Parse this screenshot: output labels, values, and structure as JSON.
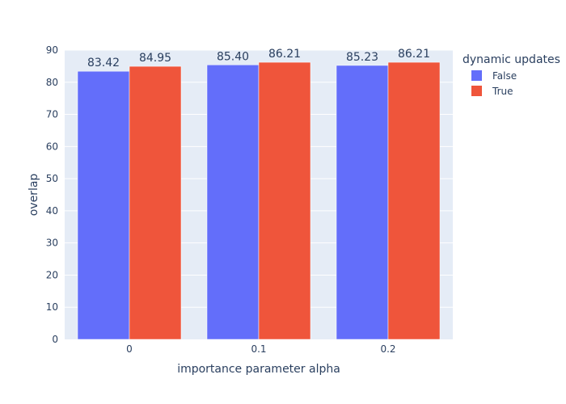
{
  "chart_data": {
    "type": "bar",
    "categories": [
      "0",
      "0.1",
      "0.2"
    ],
    "series": [
      {
        "name": "False",
        "values": [
          83.42,
          85.4,
          85.23
        ],
        "labels": [
          "83.42",
          "85.40",
          "85.23"
        ],
        "color": "#636efa"
      },
      {
        "name": "True",
        "values": [
          84.95,
          86.21,
          86.21
        ],
        "labels": [
          "84.95",
          "86.21",
          "86.21"
        ],
        "color": "#ef553b"
      }
    ],
    "xlabel": "importance parameter alpha",
    "ylabel": "overlap",
    "ylim": [
      0,
      90
    ],
    "yticks": [
      0,
      10,
      20,
      30,
      40,
      50,
      60,
      70,
      80,
      90
    ],
    "grid": true,
    "legend": {
      "title": "dynamic updates",
      "position": "top-right"
    },
    "background": "#e5ecf6"
  }
}
